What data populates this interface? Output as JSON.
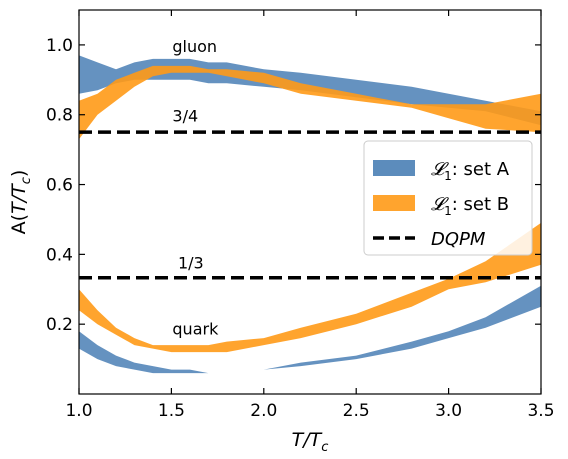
{
  "chart_data": {
    "type": "area",
    "xlabel": "T/T_c",
    "ylabel": "A(T/T_c)",
    "xlim": [
      1.0,
      3.5
    ],
    "ylim": [
      0.0,
      1.1
    ],
    "x_ticks": [
      "1.0",
      "1.5",
      "2.0",
      "2.5",
      "3.0",
      "3.5"
    ],
    "y_ticks": [
      "0.2",
      "0.4",
      "0.6",
      "0.8",
      "1.0"
    ],
    "x_tick_values": [
      1.0,
      1.5,
      2.0,
      2.5,
      3.0,
      3.5
    ],
    "y_tick_values": [
      0.2,
      0.4,
      0.6,
      0.8,
      1.0
    ],
    "grid": false,
    "legend_position": "center-right",
    "colors": {
      "set_a": "#4a7fb5",
      "set_b": "#ff9a17",
      "line": "#000000"
    },
    "annotations": [
      {
        "text": "gluon",
        "x": 1.5,
        "y": 0.98
      },
      {
        "text": "3/4",
        "x": 1.5,
        "y": 0.78
      },
      {
        "text": "1/3",
        "x": 1.53,
        "y": 0.36
      },
      {
        "text": "quark",
        "x": 1.5,
        "y": 0.17
      }
    ],
    "series": [
      {
        "name": "𝓛1: set A",
        "component": "gluon",
        "x": [
          1.0,
          1.1,
          1.2,
          1.3,
          1.4,
          1.5,
          1.6,
          1.7,
          1.8,
          2.0,
          2.2,
          2.5,
          2.8,
          3.0,
          3.2,
          3.5
        ],
        "lower": [
          0.86,
          0.87,
          0.89,
          0.9,
          0.9,
          0.9,
          0.9,
          0.89,
          0.89,
          0.88,
          0.87,
          0.85,
          0.83,
          0.82,
          0.81,
          0.77
        ],
        "upper": [
          0.97,
          0.95,
          0.93,
          0.95,
          0.96,
          0.96,
          0.96,
          0.95,
          0.95,
          0.93,
          0.92,
          0.9,
          0.88,
          0.86,
          0.84,
          0.81
        ]
      },
      {
        "name": "𝓛1: set B",
        "component": "gluon",
        "x": [
          1.0,
          1.1,
          1.2,
          1.3,
          1.4,
          1.5,
          1.6,
          1.7,
          1.8,
          2.0,
          2.2,
          2.5,
          2.8,
          3.0,
          3.2,
          3.5
        ],
        "lower": [
          0.73,
          0.8,
          0.84,
          0.88,
          0.91,
          0.92,
          0.92,
          0.92,
          0.91,
          0.89,
          0.86,
          0.84,
          0.82,
          0.79,
          0.76,
          0.75
        ],
        "upper": [
          0.84,
          0.86,
          0.9,
          0.92,
          0.94,
          0.94,
          0.94,
          0.93,
          0.93,
          0.92,
          0.89,
          0.86,
          0.83,
          0.83,
          0.83,
          0.86
        ]
      },
      {
        "name": "𝓛1: set A",
        "component": "quark",
        "x": [
          1.0,
          1.1,
          1.2,
          1.3,
          1.4,
          1.5,
          1.6,
          1.7,
          1.8,
          2.0,
          2.2,
          2.5,
          2.8,
          3.0,
          3.2,
          3.5
        ],
        "lower": [
          0.13,
          0.1,
          0.08,
          0.07,
          0.06,
          0.06,
          0.06,
          0.06,
          0.06,
          0.07,
          0.08,
          0.1,
          0.13,
          0.16,
          0.19,
          0.25
        ],
        "upper": [
          0.18,
          0.14,
          0.11,
          0.09,
          0.08,
          0.07,
          0.07,
          0.06,
          0.06,
          0.07,
          0.09,
          0.11,
          0.15,
          0.18,
          0.22,
          0.31
        ]
      },
      {
        "name": "𝓛1: set B",
        "component": "quark",
        "x": [
          1.0,
          1.1,
          1.2,
          1.3,
          1.4,
          1.5,
          1.6,
          1.7,
          1.8,
          2.0,
          2.2,
          2.5,
          2.8,
          3.0,
          3.2,
          3.5
        ],
        "lower": [
          0.24,
          0.2,
          0.17,
          0.14,
          0.13,
          0.12,
          0.12,
          0.12,
          0.12,
          0.14,
          0.16,
          0.2,
          0.25,
          0.3,
          0.32,
          0.37
        ],
        "upper": [
          0.3,
          0.24,
          0.19,
          0.16,
          0.14,
          0.14,
          0.14,
          0.14,
          0.15,
          0.16,
          0.19,
          0.23,
          0.29,
          0.33,
          0.38,
          0.49
        ]
      },
      {
        "name": "DQPM",
        "type": "dashed-line",
        "component": "gluon",
        "y": 0.75
      },
      {
        "name": "DQPM",
        "type": "dashed-line",
        "component": "quark",
        "y": 0.333
      }
    ],
    "legend": [
      {
        "label_main": "𝓛",
        "label_sub": "1",
        "label_rest": ": set A",
        "swatch": "band",
        "color": "#4a7fb5"
      },
      {
        "label_main": "𝓛",
        "label_sub": "1",
        "label_rest": ": set B",
        "swatch": "band",
        "color": "#ff9a17"
      },
      {
        "label_main": "DQPM",
        "label_sub": "",
        "label_rest": "",
        "swatch": "dashed",
        "color": "#000000"
      }
    ]
  }
}
